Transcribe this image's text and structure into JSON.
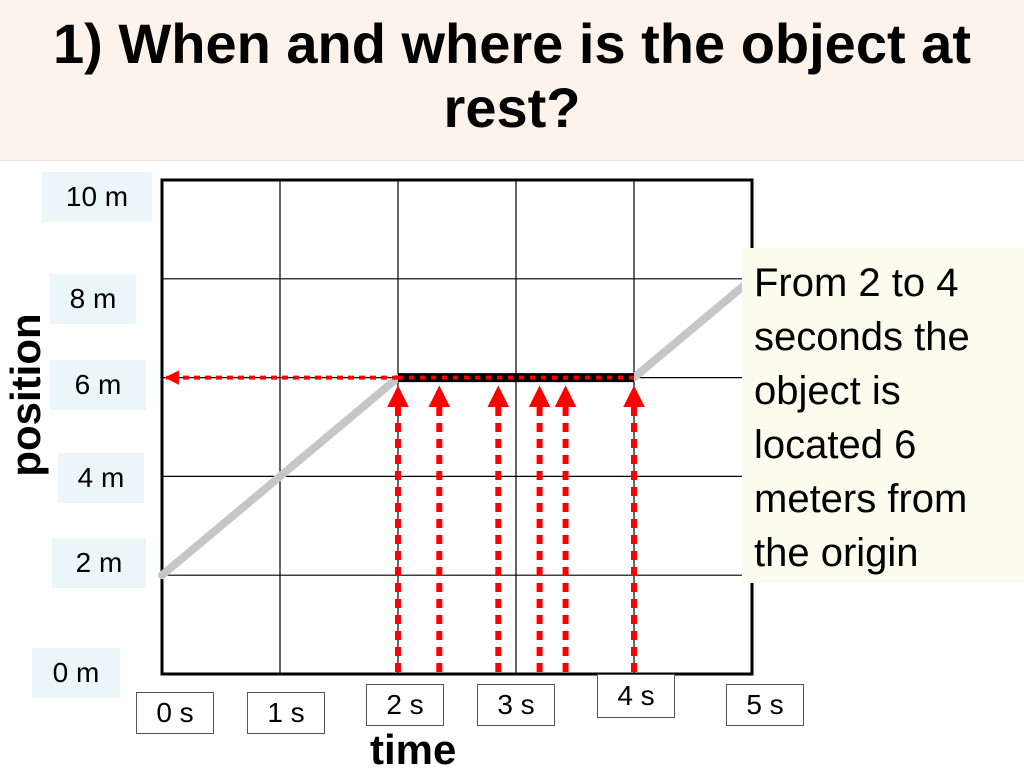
{
  "title": "1) When and where is the object at rest?",
  "annotation": "From 2 to 4 seconds the object is located 6 meters from the origin",
  "chart_data": {
    "type": "line",
    "title": "1) When and where is the object at rest?",
    "xlabel": "time",
    "ylabel": "position",
    "xlim": [
      0,
      5
    ],
    "ylim": [
      0,
      10
    ],
    "grid": true,
    "x_ticks": [
      "0 s",
      "1 s",
      "2 s",
      "3 s",
      "4 s",
      "5 s"
    ],
    "y_ticks": [
      "0 m",
      "2 m",
      "4 m",
      "6 m",
      "8 m",
      "10 m"
    ],
    "series": [
      {
        "x": [
          0,
          2,
          4,
          5
        ],
        "y": [
          2,
          6,
          6,
          8
        ]
      }
    ],
    "highlighted_segment": {
      "x": [
        2,
        4
      ],
      "y": [
        6,
        6
      ]
    },
    "vertical_arrows_x": [
      2,
      2.35,
      2.85,
      3.2,
      3.42,
      4
    ],
    "horizontal_arrow": {
      "y": 6,
      "from_x": 2,
      "to_x": 0
    },
    "colors": {
      "line": "#c6c6c6",
      "rest": "#000000",
      "arrows": "#ff0000",
      "grid": "#000000"
    }
  }
}
